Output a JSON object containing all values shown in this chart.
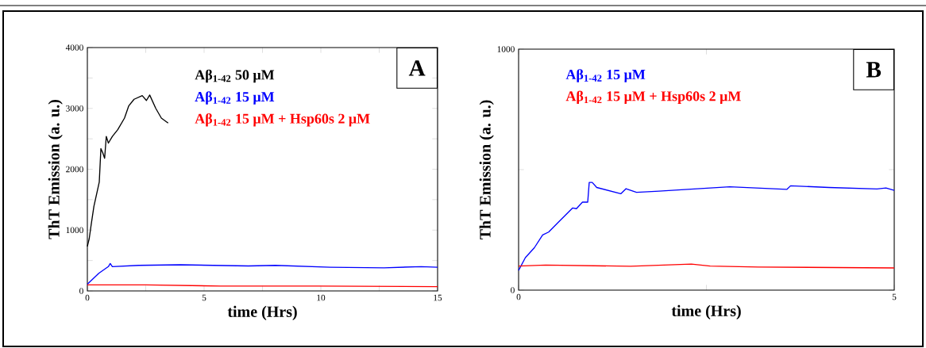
{
  "chart_data": [
    {
      "type": "line",
      "xlabel": "time (Hrs)",
      "ylabel": "ThT Emission (a. u.)",
      "annotations": [
        "A"
      ],
      "xlim": [
        0,
        15
      ],
      "ylim": [
        0,
        4000
      ],
      "xticks": [
        0,
        {
          "value": 2.5,
          "label": null
        },
        5,
        {
          "value": 7.5,
          "label": null
        },
        10,
        {
          "value": 12.5,
          "label": null
        },
        15
      ],
      "yticks": [
        0,
        {
          "value": 500,
          "label": null
        },
        1000,
        {
          "value": 1500,
          "label": null
        },
        2000,
        {
          "value": 2500,
          "label": null
        },
        3000,
        {
          "value": 3500,
          "label": null
        },
        4000
      ],
      "series": [
        {
          "name": "Aβ$_{1-42}$ 50 μM",
          "color": "#000000",
          "x": [
            0,
            0.08,
            0.16,
            0.28,
            0.43,
            0.51,
            0.58,
            0.66,
            0.74,
            0.81,
            0.9,
            1.07,
            1.3,
            1.59,
            1.77,
            2.0,
            2.35,
            2.53,
            2.67,
            2.93,
            3.17,
            3.46
          ],
          "values": [
            730,
            860,
            1080,
            1390,
            1650,
            1790,
            2340,
            2270,
            2180,
            2540,
            2430,
            2540,
            2650,
            2840,
            3040,
            3150,
            3210,
            3130,
            3220,
            3000,
            2840,
            2760
          ]
        },
        {
          "name": "Aβ$_{1-42}$ 15 μM",
          "color": "#0000ff",
          "x": [
            0,
            0.49,
            0.9,
            0.98,
            1.07,
            2.2,
            3.98,
            6.9,
            8.05,
            10.4,
            12.7,
            14.3,
            15
          ],
          "values": [
            110,
            290,
            400,
            450,
            400,
            420,
            430,
            410,
            420,
            390,
            380,
            400,
            390
          ]
        },
        {
          "name": "Aβ$_{1-42}$ 15 μM + Hsp60s 2 μM",
          "color": "#ff0000",
          "x": [
            0,
            2.5,
            5.7,
            9.9,
            15
          ],
          "values": [
            100,
            100,
            80,
            80,
            70
          ]
        }
      ]
    },
    {
      "type": "line",
      "xlabel": "time (Hrs)",
      "ylabel": "ThT Emission (a. u.)",
      "annotations": [
        "B"
      ],
      "xlim": [
        0,
        5
      ],
      "ylim": [
        0,
        1000
      ],
      "xticks": [
        0,
        {
          "value": 2.5,
          "label": null
        },
        5
      ],
      "yticks": [
        0,
        {
          "value": 500,
          "label": null
        },
        1000
      ],
      "series": [
        {
          "name": "Aβ$_{1-42}$ 15 μM",
          "color": "#0000ff",
          "x": [
            0,
            0.09,
            0.21,
            0.32,
            0.4,
            0.53,
            0.72,
            0.77,
            0.85,
            0.92,
            0.94,
            0.98,
            1.04,
            1.36,
            1.43,
            1.57,
            1.87,
            2.25,
            2.81,
            3.57,
            3.62,
            4.13,
            4.77,
            4.89,
            5
          ],
          "values": [
            82,
            135,
            176,
            229,
            241,
            282,
            341,
            338,
            365,
            365,
            447,
            447,
            426,
            400,
            421,
            406,
            411,
            418,
            429,
            418,
            433,
            426,
            420,
            424,
            414
          ]
        },
        {
          "name": "Aβ$_{1-42}$ 15 μM + Hsp60s 2 μM",
          "color": "#ff0000",
          "x": [
            0,
            0.36,
            1.49,
            2.3,
            2.55,
            3.19,
            5
          ],
          "values": [
            100,
            104,
            99,
            108,
            100,
            96,
            92
          ]
        }
      ]
    }
  ]
}
